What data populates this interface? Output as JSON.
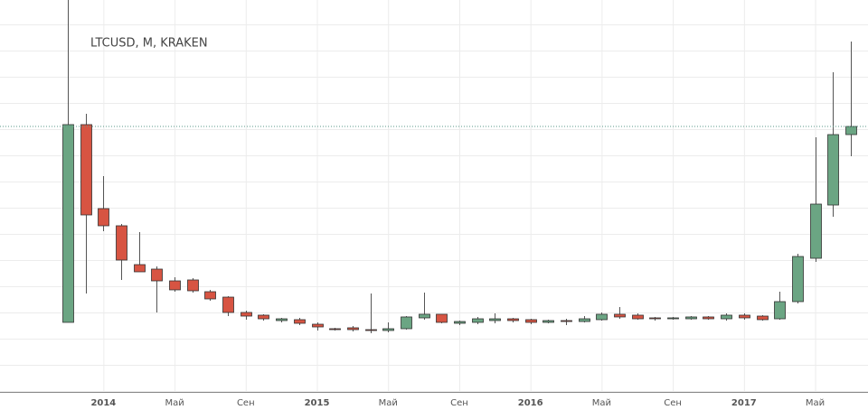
{
  "chart_data": {
    "type": "candlestick",
    "title": "LTCUSD, M, KRAKEN",
    "categories": [
      null,
      null,
      "2014",
      null,
      null,
      null,
      "Май",
      null,
      null,
      null,
      "Сен",
      null,
      null,
      null,
      "2015",
      null,
      null,
      null,
      "Май",
      null,
      null,
      null,
      "Сен",
      null,
      null,
      null,
      "2016",
      null,
      null,
      null,
      "Май",
      null,
      null,
      null,
      "Сен",
      null,
      null,
      null,
      "2017",
      null,
      null,
      null,
      "Май",
      null,
      null
    ],
    "open": [
      7.17,
      43.67,
      28.17,
      25,
      17.83,
      17,
      14.83,
      15,
      12.83,
      11.83,
      9,
      8.5,
      7.5,
      7.67,
      6.83,
      6,
      6.17,
      5.83,
      5.67,
      6,
      8,
      8.67,
      7,
      7.17,
      7.5,
      7.83,
      7.67,
      7.17,
      7.5,
      7.33,
      7.67,
      8.67,
      8.5,
      8,
      7.83,
      7.83,
      8.17,
      7.83,
      8.5,
      8.33,
      7.83,
      11,
      19,
      28.83,
      41.83
    ],
    "high": [
      70,
      45.67,
      34.17,
      25.33,
      23.83,
      17.5,
      15.5,
      15.33,
      13.17,
      12,
      9.33,
      8.67,
      8,
      8,
      7.17,
      6.17,
      6.5,
      12.5,
      7.17,
      8.33,
      12.67,
      8.67,
      7.5,
      8.17,
      8.83,
      8,
      7.83,
      7.67,
      7.83,
      8.33,
      9,
      10,
      8.83,
      8.17,
      8.17,
      8.33,
      8.33,
      8.83,
      8.83,
      8.5,
      12.83,
      19.83,
      41.33,
      53.33,
      59
    ],
    "low": [
      7.17,
      12.5,
      24,
      15,
      16.5,
      9,
      12.83,
      12.67,
      11.17,
      8.33,
      7.67,
      7.5,
      7.17,
      6.67,
      5.67,
      5.67,
      5.5,
      5.17,
      5.33,
      5.83,
      7.67,
      7,
      6.67,
      6.83,
      7,
      7.17,
      6.83,
      7,
      6.67,
      7.17,
      7.5,
      7.83,
      7.67,
      7.5,
      7.67,
      7.67,
      7.67,
      7.5,
      7.67,
      7.5,
      7.67,
      10.67,
      18.33,
      26.67,
      37.83
    ],
    "close": [
      43.67,
      27,
      25,
      18.67,
      16.5,
      14.83,
      13.17,
      13,
      11.5,
      9,
      8.33,
      7.83,
      7.83,
      7,
      6.33,
      5.83,
      5.83,
      5.67,
      6,
      8.17,
      8.67,
      7.17,
      7.33,
      7.83,
      7.83,
      7.5,
      7.17,
      7.5,
      7.33,
      7.83,
      8.67,
      8.17,
      7.83,
      7.83,
      8,
      8.17,
      7.83,
      8.5,
      8,
      7.67,
      11,
      19.33,
      29,
      41.83,
      43.33
    ],
    "up_color": "#6ba583",
    "down_color": "#d75442",
    "ylim": [
      -5.67,
      66.67
    ],
    "grid": true
  }
}
